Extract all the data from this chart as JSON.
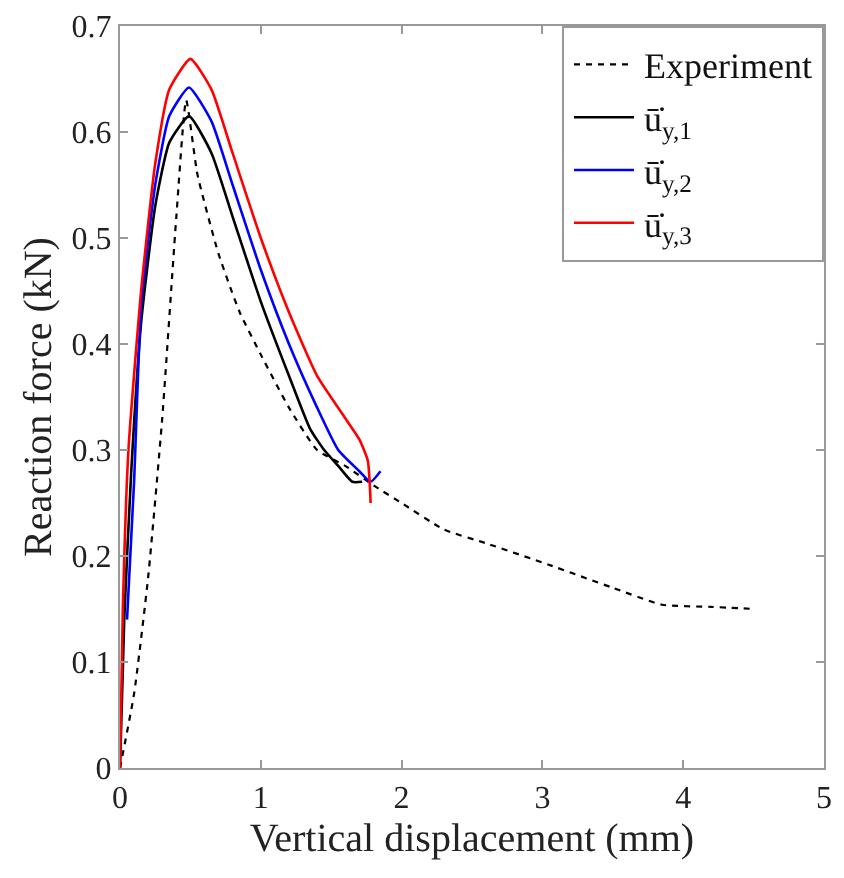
{
  "chart_data": {
    "type": "line",
    "xlabel": "Vertical displacement (mm)",
    "ylabel": "Reaction force (kN)",
    "xlim": [
      0,
      5
    ],
    "ylim": [
      0,
      0.7
    ],
    "xticks": [
      0,
      1,
      2,
      3,
      4,
      5
    ],
    "yticks": [
      0,
      0.1,
      0.2,
      0.3,
      0.4,
      0.5,
      0.6,
      0.7
    ],
    "legend": "top right",
    "marker": "none",
    "series": [
      {
        "name": "Experiment",
        "color": "#000000",
        "line_style": "dotted",
        "x": [
          0,
          0.1,
          0.2,
          0.3,
          0.4,
          0.47,
          0.55,
          0.7,
          0.85,
          1.0,
          1.2,
          1.4,
          1.6,
          1.82,
          2.0,
          2.3,
          2.6,
          3.04,
          3.5,
          3.85,
          4.2,
          4.51
        ],
        "values": [
          0,
          0.07,
          0.18,
          0.33,
          0.52,
          0.63,
          0.56,
          0.485,
          0.43,
          0.39,
          0.34,
          0.3,
          0.285,
          0.265,
          0.25,
          0.225,
          0.212,
          0.192,
          0.17,
          0.154,
          0.152,
          0.15
        ]
      },
      {
        "name": "ū̇$_{y,1}$",
        "color": "#000000",
        "line_style": "solid",
        "x": [
          0,
          0.03,
          0.08,
          0.15,
          0.25,
          0.35,
          0.49,
          0.65,
          0.8,
          1.0,
          1.2,
          1.35,
          1.45,
          1.55,
          1.65,
          1.72
        ],
        "values": [
          0,
          0.14,
          0.28,
          0.42,
          0.53,
          0.59,
          0.615,
          0.58,
          0.52,
          0.44,
          0.37,
          0.32,
          0.3,
          0.285,
          0.27,
          0.27
        ]
      },
      {
        "name": "ū̇$_{y,2}$",
        "color": "#0000ff",
        "line_style": "solid",
        "x": [
          0.05,
          0.1,
          0.15,
          0.25,
          0.35,
          0.49,
          0.65,
          0.8,
          1.0,
          1.2,
          1.4,
          1.55,
          1.7,
          1.78,
          1.85
        ],
        "values": [
          0.14,
          0.27,
          0.435,
          0.55,
          0.615,
          0.642,
          0.61,
          0.55,
          0.47,
          0.4,
          0.34,
          0.3,
          0.28,
          0.27,
          0.28
        ]
      },
      {
        "name": "ū̇$_{y,3}$",
        "color": "#ff0000",
        "line_style": "solid",
        "x": [
          0,
          0.02,
          0.06,
          0.15,
          0.25,
          0.35,
          0.5,
          0.65,
          0.8,
          1.0,
          1.2,
          1.4,
          1.6,
          1.7,
          1.76,
          1.78
        ],
        "values": [
          0,
          0.15,
          0.3,
          0.45,
          0.57,
          0.64,
          0.669,
          0.64,
          0.58,
          0.5,
          0.43,
          0.37,
          0.33,
          0.31,
          0.29,
          0.25
        ]
      }
    ]
  }
}
